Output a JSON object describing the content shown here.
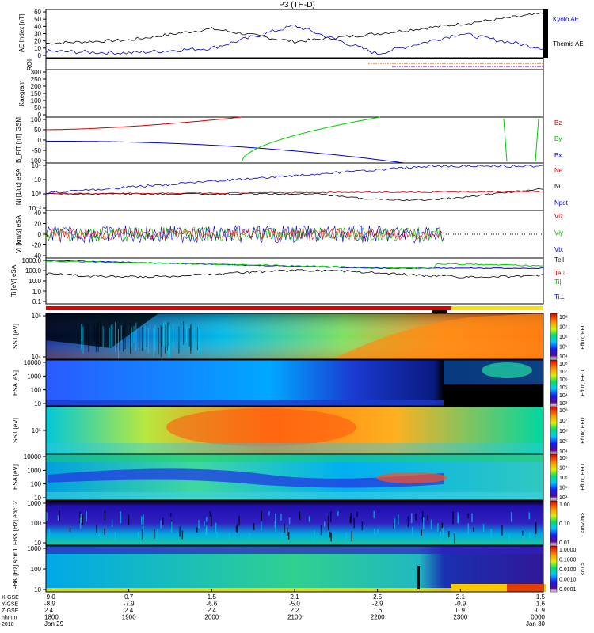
{
  "title": "P3 (TH-D)",
  "chart_data": [
    {
      "type": "line",
      "ylabel": "AE Index [nT]",
      "yticks": [
        "60",
        "50",
        "40",
        "30",
        "20",
        "10",
        "0"
      ],
      "ylim": [
        0,
        60
      ],
      "series": [
        {
          "name": "Kyoto AE",
          "color": "#0000cc"
        },
        {
          "name": "Themis AE",
          "color": "#000000"
        }
      ],
      "x": [
        "1800",
        "1900",
        "2000",
        "2100",
        "2200",
        "2300",
        "0000"
      ],
      "values_kyoto": [
        8,
        6,
        12,
        40,
        5,
        30,
        12
      ],
      "values_themis": [
        18,
        22,
        36,
        20,
        30,
        42,
        55
      ]
    },
    {
      "type": "line",
      "ylabel": "ROI"
    },
    {
      "type": "line",
      "ylabel": "Kaegram",
      "yticks": [
        "300",
        "250",
        "200",
        "150",
        "100",
        "50",
        "0"
      ],
      "ylim": [
        0,
        300
      ]
    },
    {
      "type": "line",
      "ylabel": "B_FIT [nT] GSM",
      "yticks": [
        "100",
        "50",
        "0",
        "-50",
        "-100"
      ],
      "ylim": [
        -100,
        100
      ],
      "series": [
        {
          "name": "Bz",
          "color": "#cc0000"
        },
        {
          "name": "By",
          "color": "#00cc00"
        },
        {
          "name": "Bx",
          "color": "#0000cc"
        }
      ]
    },
    {
      "type": "line",
      "ylabel": "Ni [1/cc] eSA",
      "yticks": [
        "10⁴",
        "10⁲",
        "10⁰",
        "10⁻²"
      ],
      "series": [
        {
          "name": "Ne",
          "color": "#cc0000"
        },
        {
          "name": "Ni",
          "color": "#000000"
        },
        {
          "name": "Npot",
          "color": "#0000cc"
        }
      ]
    },
    {
      "type": "line",
      "ylabel": "Vi [km/s] eSA",
      "yticks": [
        "40",
        "20",
        "0",
        "-20",
        "-40"
      ],
      "ylim": [
        -40,
        40
      ],
      "series": [
        {
          "name": "Viz",
          "color": "#cc0000"
        },
        {
          "name": "Viy",
          "color": "#00cc00"
        },
        {
          "name": "Vix",
          "color": "#0000cc"
        }
      ]
    },
    {
      "type": "line",
      "ylabel": "Ti [eV] eSA",
      "yticks": [
        "1000.0",
        "100.0",
        "10.0",
        "1.0",
        "0.1"
      ],
      "series": [
        {
          "name": "Tell",
          "color": "#000000"
        },
        {
          "name": "Te⊥",
          "color": "#cc0000"
        },
        {
          "name": "Ti||",
          "color": "#00cc00"
        },
        {
          "name": "Ti⊥",
          "color": "#0000cc"
        }
      ]
    },
    {
      "type": "heatmap",
      "ylabel": "SST [eV]",
      "yticks": [
        "10⁵",
        "10⁴"
      ],
      "colorbar_label": "Eflux, EFU",
      "colorbar_ticks": [
        "10⁸",
        "10⁷",
        "10⁶",
        "10⁵",
        "10⁴"
      ]
    },
    {
      "type": "heatmap",
      "ylabel": "ESA [eV]",
      "yticks": [
        "10000",
        "1000",
        "100",
        "10"
      ],
      "colorbar_label": "Eflux, EFU",
      "colorbar_ticks": [
        "10⁸",
        "10⁷",
        "10⁶",
        "10⁵",
        "10⁴",
        "10³"
      ]
    },
    {
      "type": "heatmap",
      "ylabel": "SST [eV]",
      "yticks": [
        "10⁵"
      ],
      "colorbar_label": "Eflux, EFU",
      "colorbar_ticks": [
        "10⁸",
        "10⁷",
        "10⁶",
        "10⁵",
        "10⁴"
      ]
    },
    {
      "type": "heatmap",
      "ylabel": "ESA [eV]",
      "yticks": [
        "10000",
        "1000",
        "100",
        "10"
      ],
      "colorbar_label": "Eflux, EFU",
      "colorbar_ticks": [
        "10⁸",
        "10⁷",
        "10⁶",
        "10⁵",
        "10⁴"
      ]
    },
    {
      "type": "heatmap",
      "ylabel": "FBK [Hz] edc12",
      "yticks": [
        "1000",
        "100",
        "10"
      ],
      "colorbar_label": "<mV/m>",
      "colorbar_ticks": [
        "1.00",
        "0.10",
        "0.01"
      ]
    },
    {
      "type": "heatmap",
      "ylabel": "FBK [Hz] scm1",
      "yticks": [
        "1000",
        "100",
        "10"
      ],
      "colorbar_label": "<nT>",
      "colorbar_ticks": [
        "1.0000",
        "0.1000",
        "0.0100",
        "0.0010",
        "0.0001"
      ]
    }
  ],
  "legend_labels": {
    "p0": [
      "Kyoto AE",
      "Themis AE"
    ],
    "p3": [
      "Bz",
      "By",
      "Bx"
    ],
    "p4": [
      "Ne",
      "Ni",
      "Npot"
    ],
    "p5": [
      "Viz",
      "Viy",
      "Vix"
    ],
    "p6": [
      "Tell",
      "Te⊥",
      "Ti||",
      "Ti⊥"
    ]
  },
  "xaxis": {
    "row_labels": [
      "X-GSE",
      "Y-GSE",
      "Z-GSE",
      "hhmm",
      "2010"
    ],
    "columns": [
      {
        "vals": [
          "-9.0",
          "-8.9",
          "2.4",
          "1800",
          "Jan 29"
        ]
      },
      {
        "vals": [
          "0.7",
          "-7.9",
          "2.4",
          "1900",
          ""
        ]
      },
      {
        "vals": [
          "1.5",
          "-6.6",
          "2.4",
          "2000",
          ""
        ]
      },
      {
        "vals": [
          "2.1",
          "-5.0",
          "2.2",
          "2100",
          ""
        ]
      },
      {
        "vals": [
          "2.5",
          "-2.9",
          "1.6",
          "2200",
          ""
        ]
      },
      {
        "vals": [
          "2.1",
          "-0.9",
          "0.9",
          "2300",
          ""
        ]
      },
      {
        "vals": [
          "1.5",
          "1.6",
          "-0.9",
          "0000",
          "Jan 30"
        ]
      }
    ]
  },
  "colors": {
    "bz": "#cc0000",
    "by": "#00cc00",
    "bx": "#0000cc",
    "kyoto": "#0000cc",
    "themis": "#000000"
  }
}
